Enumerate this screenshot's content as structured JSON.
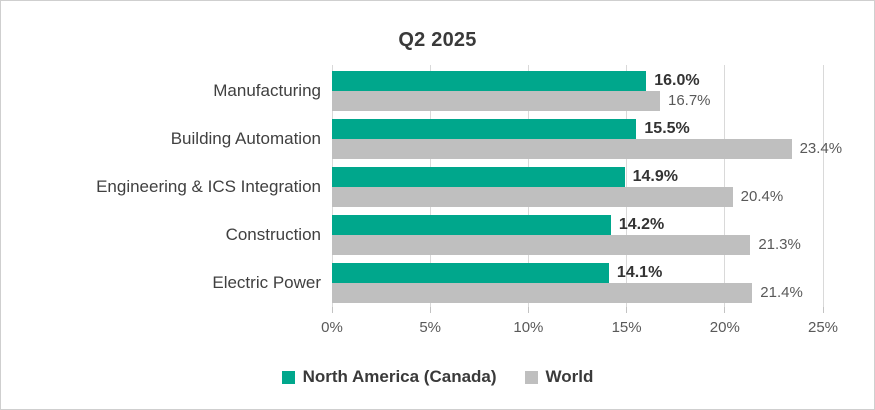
{
  "chart_data": {
    "type": "bar",
    "orientation": "horizontal",
    "title": "Q2 2025",
    "categories": [
      "Manufacturing",
      "Building Automation",
      "Engineering & ICS Integration",
      "Construction",
      "Electric Power"
    ],
    "series": [
      {
        "name": "North America (Canada)",
        "color": "#00A78C",
        "values": [
          16.0,
          15.5,
          14.9,
          14.2,
          14.1
        ],
        "data_labels": [
          "16.0%",
          "15.5%",
          "14.9%",
          "14.2%",
          "14.1%"
        ]
      },
      {
        "name": "World",
        "color": "#BFBFBF",
        "values": [
          16.7,
          23.4,
          20.4,
          21.3,
          21.4
        ],
        "data_labels": [
          "16.7%",
          "23.4%",
          "20.4%",
          "21.3%",
          "21.4%"
        ]
      }
    ],
    "xlabel": "",
    "ylabel": "",
    "x_axis": {
      "min": 0,
      "max": 25,
      "tick_step": 5,
      "tick_labels": [
        "0%",
        "5%",
        "10%",
        "15%",
        "20%",
        "25%"
      ]
    },
    "grid": "vertical",
    "gridline_color": "#D9D9D9",
    "legend_position": "bottom"
  }
}
